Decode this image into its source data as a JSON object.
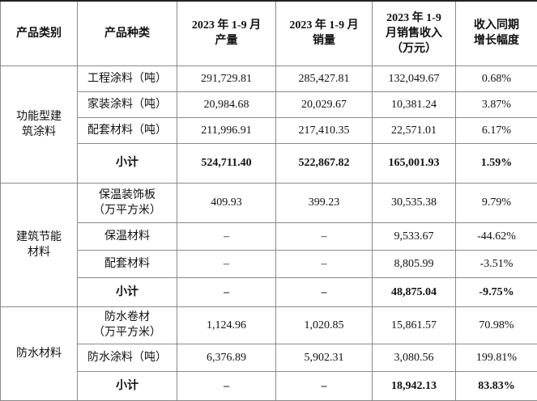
{
  "header": [
    [
      "产品类别"
    ],
    [
      "产品种类"
    ],
    [
      "2023 年 1-9 月",
      "产量"
    ],
    [
      "2023 年 1-9 月",
      "销量"
    ],
    [
      "2023 年 1-9",
      "月销售收入",
      "（万元）"
    ],
    [
      "收入同期",
      "增长幅度"
    ]
  ],
  "groups": [
    {
      "name": [
        "功能型建",
        "筑涂料"
      ],
      "rows": [
        {
          "product": [
            "工程涂料（吨）"
          ],
          "cells": [
            "291,729.81",
            "285,427.81",
            "132,049.67",
            "0.68%"
          ]
        },
        {
          "product": [
            "家装涂料（吨）"
          ],
          "cells": [
            "20,984.68",
            "20,029.67",
            "10,381.24",
            "3.87%"
          ]
        },
        {
          "product": [
            "配套材料（吨）"
          ],
          "cells": [
            "211,996.91",
            "217,410.35",
            "22,571.01",
            "6.17%"
          ]
        }
      ],
      "subtotal": {
        "label": "小计",
        "cells": [
          "524,711.40",
          "522,867.82",
          "165,001.93",
          "1.59%"
        ]
      }
    },
    {
      "name": [
        "建筑节能",
        "材料"
      ],
      "rows": [
        {
          "product": [
            "保温装饰板",
            "（万平方米）"
          ],
          "cells": [
            "409.93",
            "399.23",
            "30,535.38",
            "9.79%"
          ]
        },
        {
          "product": [
            "保温材料"
          ],
          "cells": [
            "–",
            "–",
            "9,533.67",
            "-44.62%"
          ]
        },
        {
          "product": [
            "配套材料"
          ],
          "cells": [
            "–",
            "–",
            "8,805.99",
            "-3.51%"
          ]
        }
      ],
      "subtotal": {
        "label": "小计",
        "cells": [
          "–",
          "–",
          "48,875.04",
          "-9.75%"
        ]
      }
    },
    {
      "name": [
        "防水材料"
      ],
      "rows": [
        {
          "product": [
            "防水卷材",
            "（万平方米）"
          ],
          "cells": [
            "1,124.96",
            "1,020.85",
            "15,861.57",
            "70.98%"
          ]
        },
        {
          "product": [
            "防水涂料（吨）"
          ],
          "cells": [
            "6,376.89",
            "5,902.31",
            "3,080.56",
            "199.81%"
          ]
        }
      ],
      "subtotal": {
        "label": "小计",
        "cells": [
          "–",
          "–",
          "18,942.13",
          "83.83%"
        ]
      }
    }
  ]
}
